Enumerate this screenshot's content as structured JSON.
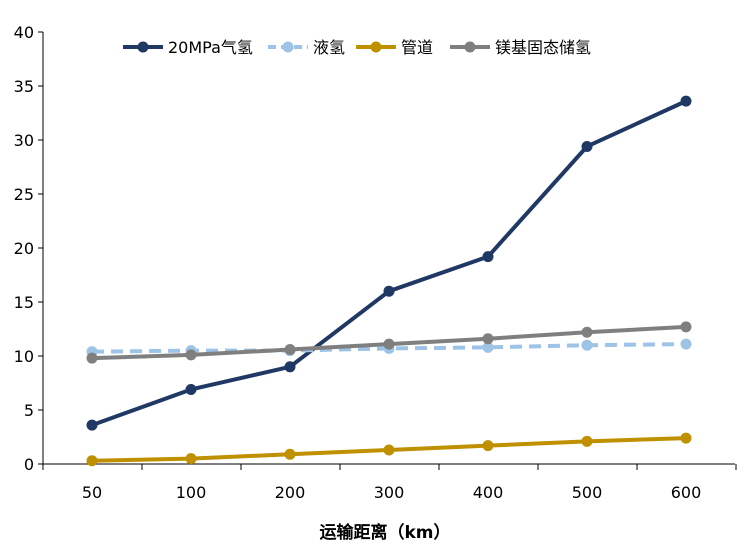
{
  "chart_data": {
    "type": "line",
    "title": "",
    "xlabel": "运输距离（km）",
    "ylabel": "",
    "categories": [
      "50",
      "100",
      "200",
      "300",
      "400",
      "500",
      "600"
    ],
    "ylim": [
      0,
      40
    ],
    "yticks": [
      0,
      5,
      10,
      15,
      20,
      25,
      30,
      35,
      40
    ],
    "grid": false,
    "legend_position": "top",
    "series": [
      {
        "name": "20MPa气氢",
        "color": "#1f3864",
        "dashed": false,
        "values": [
          3.6,
          6.9,
          9.0,
          16.0,
          19.2,
          29.4,
          33.6
        ]
      },
      {
        "name": "液氢",
        "color": "#9dc3e6",
        "dashed": true,
        "values": [
          10.4,
          10.5,
          10.5,
          10.7,
          10.8,
          11.0,
          11.1
        ]
      },
      {
        "name": "管道",
        "color": "#bf9000",
        "dashed": false,
        "values": [
          0.3,
          0.5,
          0.9,
          1.3,
          1.7,
          2.1,
          2.4
        ]
      },
      {
        "name": "镁基固态储氢",
        "color": "#7f7f7f",
        "dashed": false,
        "values": [
          9.8,
          10.1,
          10.6,
          11.1,
          11.6,
          12.2,
          12.7
        ]
      }
    ]
  }
}
